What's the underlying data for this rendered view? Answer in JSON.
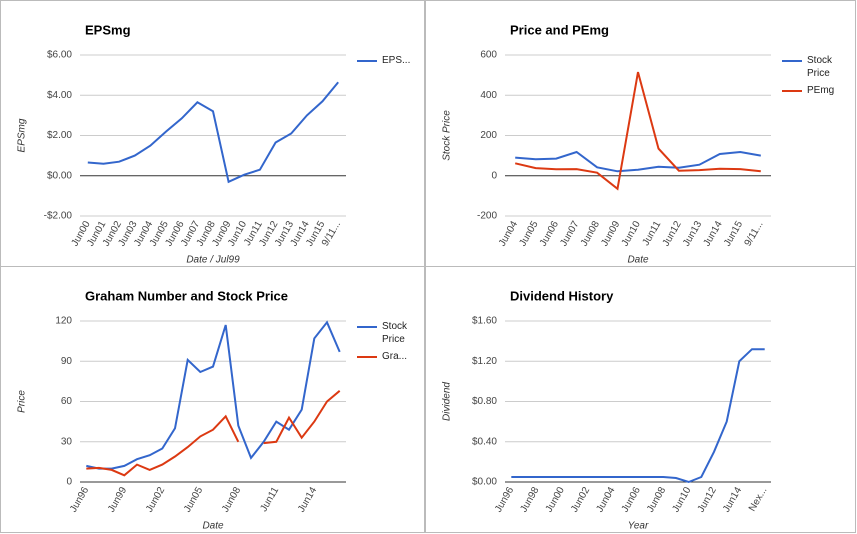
{
  "chart_data": [
    {
      "type": "line",
      "title": "EPSmg",
      "x_label": "Date / Jul99",
      "y_label": "EPSmg",
      "grid": true,
      "legend": "right",
      "categories": [
        "Jun00",
        "Jun01",
        "Jun02",
        "Jun03",
        "Jun04",
        "Jun05",
        "Jun06",
        "Jun07",
        "Jun08",
        "Jun09",
        "Jun10",
        "Jun11",
        "Jun12",
        "Jun13",
        "Jun14",
        "Jun15",
        "9/11..."
      ],
      "series": [
        {
          "name": "EPS...",
          "color": "#3366cc",
          "values": [
            0.66,
            0.6,
            0.7,
            1.0,
            1.5,
            2.2,
            2.85,
            3.65,
            3.2,
            -0.3,
            0.05,
            0.3,
            1.65,
            2.1,
            3.0,
            3.7,
            4.65
          ]
        }
      ],
      "ylim": [
        -2,
        6
      ],
      "yticks": [
        {
          "value": -2,
          "label": "-$2.00"
        },
        {
          "value": 0,
          "label": "$0.00"
        },
        {
          "value": 2,
          "label": "$2.00"
        },
        {
          "value": 4,
          "label": "$4.00"
        },
        {
          "value": 6,
          "label": "$6.00"
        }
      ]
    },
    {
      "type": "line",
      "title": "Price and PEmg",
      "x_label": "Date",
      "y_label": "Stock Price",
      "grid": true,
      "legend": "right",
      "categories": [
        "Jun04",
        "Jun05",
        "Jun06",
        "Jun07",
        "Jun08",
        "Jun09",
        "Jun10",
        "Jun11",
        "Jun12",
        "Jun13",
        "Jun14",
        "Jun15",
        "9/11..."
      ],
      "series": [
        {
          "name": "Stock Price",
          "color": "#3366cc",
          "values": [
            90,
            82,
            85,
            118,
            42,
            22,
            30,
            45,
            40,
            55,
            108,
            118,
            100
          ]
        },
        {
          "name": "PEmg",
          "color": "#dc3912",
          "values": [
            62,
            38,
            32,
            33,
            15,
            -65,
            515,
            135,
            25,
            28,
            35,
            33,
            22
          ]
        }
      ],
      "ylim": [
        -200,
        600
      ],
      "yticks": [
        -200,
        0,
        200,
        400,
        600
      ]
    },
    {
      "type": "line",
      "title": "Graham Number and Stock Price",
      "x_label": "Date",
      "y_label": "Price",
      "grid": true,
      "legend": "right",
      "categories": [
        "Jun96",
        null,
        null,
        "Jun99",
        null,
        null,
        "Jun02",
        null,
        null,
        "Jun05",
        null,
        null,
        "Jun08",
        null,
        null,
        "Jun11",
        null,
        null,
        "Jun14",
        null,
        null
      ],
      "series": [
        {
          "name": "Stock Price",
          "color": "#3366cc",
          "values": [
            12,
            10,
            10,
            12,
            17,
            20,
            25,
            40,
            91,
            82,
            86,
            117,
            42,
            18,
            30,
            45,
            39,
            54,
            107,
            119,
            97
          ]
        },
        {
          "name": "Gra...",
          "color": "#dc3912",
          "values": [
            10,
            10.5,
            9,
            5,
            13,
            9,
            13,
            19,
            26,
            34,
            39,
            49,
            30,
            null,
            29,
            30,
            48,
            33,
            45,
            60,
            68
          ]
        }
      ],
      "ylim": [
        0,
        120
      ],
      "yticks": [
        0,
        30,
        60,
        90,
        120
      ]
    },
    {
      "type": "line",
      "title": "Dividend History",
      "x_label": "Year",
      "y_label": "Dividend",
      "grid": true,
      "categories": [
        "Jun96",
        null,
        "Jun98",
        null,
        "Jun00",
        null,
        "Jun02",
        null,
        "Jun04",
        null,
        "Jun06",
        null,
        "Jun08",
        null,
        "Jun10",
        null,
        "Jun12",
        null,
        "Jun14",
        null,
        "Nex..."
      ],
      "series": [
        {
          "color": "#3366cc",
          "values": [
            0.05,
            0.05,
            0.05,
            0.05,
            0.05,
            0.05,
            0.05,
            0.05,
            0.05,
            0.05,
            0.05,
            0.05,
            0.05,
            0.04,
            0.0,
            0.05,
            0.3,
            0.6,
            1.2,
            1.32,
            1.32
          ]
        }
      ],
      "ylim": [
        0,
        1.6
      ],
      "yticks": [
        {
          "value": 0,
          "label": "$0.00"
        },
        {
          "value": 0.4,
          "label": "$0.40"
        },
        {
          "value": 0.8,
          "label": "$0.80"
        },
        {
          "value": 1.2,
          "label": "$1.20"
        },
        {
          "value": 1.6,
          "label": "$1.60"
        }
      ]
    }
  ]
}
